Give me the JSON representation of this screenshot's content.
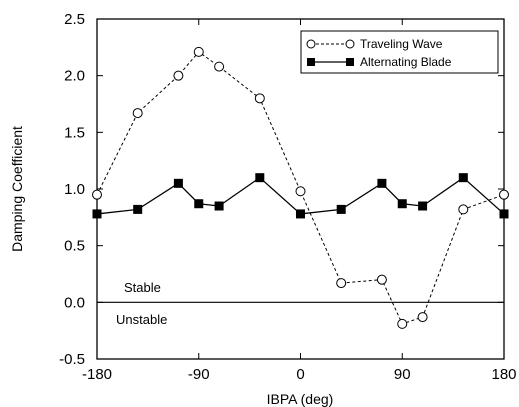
{
  "chart_data": {
    "type": "line",
    "xlabel": "IBPA (deg)",
    "ylabel": "Damping Coefficient",
    "xlim": [
      -180,
      180
    ],
    "ylim": [
      -0.5,
      2.5
    ],
    "xticks": [
      -180,
      -90,
      0,
      90,
      180
    ],
    "xtick_labels": [
      "-180",
      "-90",
      "0",
      "90",
      "180"
    ],
    "yticks": [
      -0.5,
      0.0,
      0.5,
      1.0,
      1.5,
      2.0,
      2.5
    ],
    "ytick_labels": [
      "-0.5",
      "0.0",
      "0.5",
      "1.0",
      "1.5",
      "2.0",
      "2.5"
    ],
    "grid": false,
    "legend_position": "top-right",
    "reference_line_y": 0.0,
    "annotations": [
      "Stable",
      "Unstable"
    ],
    "series": [
      {
        "name": "Traveling Wave",
        "line_style": "dashed",
        "marker": "open-circle",
        "x": [
          -180,
          -144,
          -108,
          -90,
          -72,
          -36,
          0,
          36,
          72,
          90,
          108,
          144,
          180
        ],
        "y": [
          0.95,
          1.67,
          2.0,
          2.21,
          2.08,
          1.8,
          0.98,
          0.17,
          0.2,
          -0.19,
          -0.13,
          0.82,
          0.95
        ]
      },
      {
        "name": "Alternating Blade",
        "line_style": "solid",
        "marker": "filled-square",
        "x": [
          -180,
          -144,
          -108,
          -90,
          -72,
          -36,
          0,
          36,
          72,
          90,
          108,
          144,
          180
        ],
        "y": [
          0.78,
          0.82,
          1.05,
          0.87,
          0.85,
          1.1,
          0.78,
          0.82,
          1.05,
          0.87,
          0.85,
          1.1,
          0.78
        ]
      }
    ]
  }
}
